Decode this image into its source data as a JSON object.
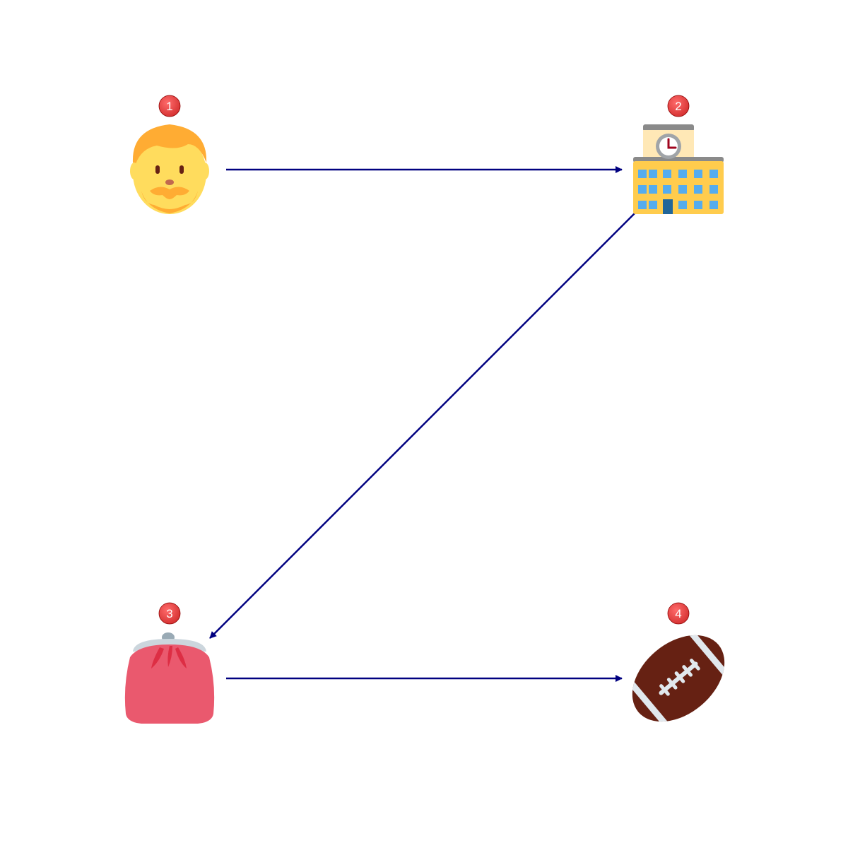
{
  "diagram": {
    "nodes": [
      {
        "id": "1",
        "badge": "1",
        "icon": "man-face-icon"
      },
      {
        "id": "2",
        "badge": "2",
        "icon": "school-building-icon"
      },
      {
        "id": "3",
        "badge": "3",
        "icon": "purse-icon"
      },
      {
        "id": "4",
        "badge": "4",
        "icon": "american-football-icon"
      }
    ],
    "edges": [
      {
        "from": "1",
        "to": "2"
      },
      {
        "from": "2",
        "to": "3"
      },
      {
        "from": "3",
        "to": "4"
      }
    ],
    "colors": {
      "arrow": "#000080",
      "badge": "#e53935"
    }
  }
}
